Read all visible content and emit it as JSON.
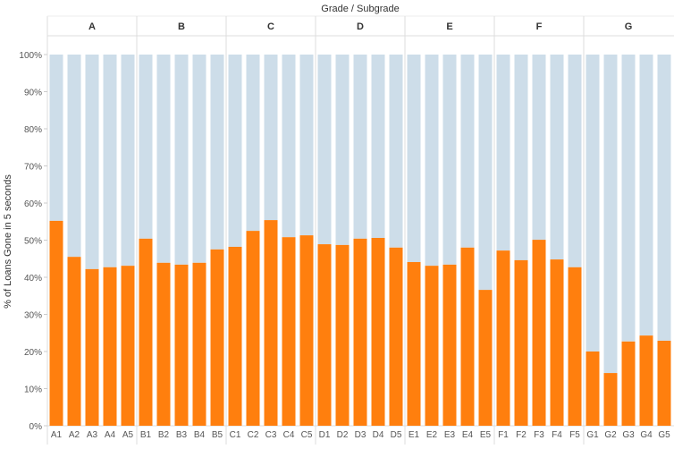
{
  "chart_data": {
    "type": "bar",
    "stacked_percent": true,
    "title": "Grade  /  Subgrade",
    "ylabel": "% of Loans Gone in 5 seconds",
    "ylim": [
      0,
      100
    ],
    "yticks": [
      "0%",
      "10%",
      "20%",
      "30%",
      "40%",
      "50%",
      "60%",
      "70%",
      "80%",
      "90%",
      "100%"
    ],
    "groups": [
      "A",
      "B",
      "C",
      "D",
      "E",
      "F",
      "G"
    ],
    "categories": [
      "A1",
      "A2",
      "A3",
      "A4",
      "A5",
      "B1",
      "B2",
      "B3",
      "B4",
      "B5",
      "C1",
      "C2",
      "C3",
      "C4",
      "C5",
      "D1",
      "D2",
      "D3",
      "D4",
      "D5",
      "E1",
      "E2",
      "E3",
      "E4",
      "E5",
      "F1",
      "F2",
      "F3",
      "F4",
      "F5",
      "G1",
      "G2",
      "G3",
      "G4",
      "G5"
    ],
    "values": [
      55.2,
      45.5,
      42.2,
      42.7,
      43.1,
      50.4,
      43.9,
      43.4,
      43.9,
      47.5,
      48.2,
      52.5,
      55.4,
      50.8,
      51.3,
      48.9,
      48.7,
      50.4,
      50.6,
      48.0,
      44.1,
      43.1,
      43.4,
      48.0,
      36.6,
      47.2,
      44.6,
      50.1,
      44.8,
      42.7,
      20.0,
      14.2,
      22.7,
      24.3,
      22.9
    ],
    "colors": {
      "value": "#ff7f0e",
      "remainder": "#cddde9"
    },
    "grid": false
  }
}
